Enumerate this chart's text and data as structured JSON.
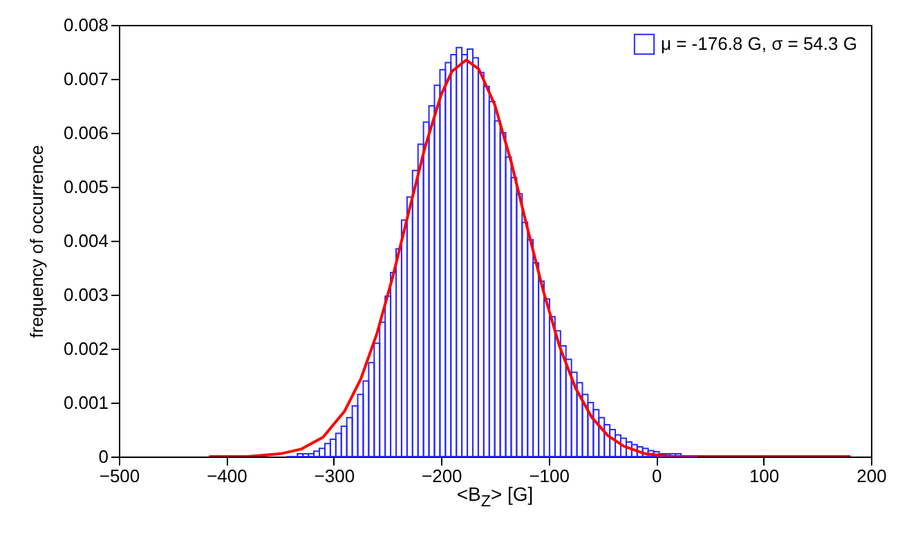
{
  "chart_data": {
    "type": "histogram",
    "xlabel": "<B$_{Z}$> [G]",
    "ylabel": "frequency of occurrence",
    "xlim": [
      -500,
      200
    ],
    "xticks": [
      -500,
      -400,
      -300,
      -200,
      -100,
      0,
      100,
      200
    ],
    "ylim": [
      0,
      0.008
    ],
    "yticks": [
      0,
      0.001,
      0.002,
      0.003,
      0.004,
      0.005,
      0.006,
      0.007,
      0.008
    ],
    "grid": false,
    "legend": "top right",
    "bins": [
      -344.0,
      -338.9,
      -333.8,
      -328.7,
      -323.6,
      -318.5,
      -313.4,
      -308.3,
      -303.2,
      -298.1,
      -293.0,
      -287.9,
      -282.8,
      -277.7,
      -272.6,
      -267.5,
      -262.4,
      -257.3,
      -252.2,
      -247.1,
      -242.0,
      -236.9,
      -231.8,
      -226.7,
      -221.6,
      -216.5,
      -211.4,
      -206.3,
      -201.2,
      -196.1,
      -191.0,
      -185.9,
      -180.8,
      -175.7,
      -170.6,
      -165.5,
      -160.4,
      -155.3,
      -150.2,
      -145.1,
      -140.0,
      -134.9,
      -129.8,
      -124.7,
      -119.6,
      -114.5,
      -109.4,
      -104.3,
      -99.2,
      -94.1,
      -89.0,
      -83.9,
      -78.8,
      -73.7,
      -68.6,
      -63.5,
      -58.4,
      -53.3,
      -48.2,
      -43.1,
      -38.0,
      -32.9,
      -27.8,
      -22.7,
      -17.6,
      -12.5,
      -7.4,
      -2.3,
      2.8,
      7.9,
      13.0,
      18.1,
      23.2,
      28.3,
      33.4,
      38.5
    ],
    "series": [
      {
        "name": "μ = -176.8 G, σ =  54.3 G",
        "type": "histogram",
        "color": "#2a2aff",
        "values": [
          0,
          0,
          5e-05,
          5e-05,
          5e-05,
          0.0001,
          0.00015,
          0.00024,
          0.00032,
          0.00043,
          0.00056,
          0.00072,
          0.00094,
          0.00115,
          0.0014,
          0.00174,
          0.0021,
          0.00249,
          0.00297,
          0.00341,
          0.00385,
          0.00438,
          0.00481,
          0.0053,
          0.00579,
          0.0062,
          0.0065,
          0.00688,
          0.00717,
          0.0073,
          0.00745,
          0.00758,
          0.00745,
          0.00755,
          0.00739,
          0.00712,
          0.00686,
          0.00658,
          0.00622,
          0.006,
          0.00555,
          0.00517,
          0.00487,
          0.00434,
          0.00402,
          0.00359,
          0.00325,
          0.00292,
          0.00259,
          0.00233,
          0.00205,
          0.0018,
          0.00156,
          0.00137,
          0.00115,
          0.001,
          0.00087,
          0.00072,
          0.00059,
          0.0005,
          0.0004,
          0.00034,
          0.00027,
          0.00022,
          0.00018,
          0.00015,
          0.00011,
          9e-05,
          5e-05,
          5e-05,
          5e-05,
          5e-05,
          0,
          0,
          0
        ]
      },
      {
        "type": "line",
        "color": "#ff0000",
        "x": [
          -415,
          -380,
          -350,
          -330,
          -310,
          -290,
          -275,
          -260,
          -245,
          -230,
          -215,
          -200,
          -190,
          -176.8,
          -165,
          -150,
          -135,
          -120,
          -105,
          -90,
          -75,
          -60,
          -45,
          -30,
          -10,
          15,
          50,
          180
        ],
        "values": [
          0,
          0,
          5e-05,
          0.00014,
          0.00036,
          0.00084,
          0.00143,
          0.00227,
          0.00334,
          0.00455,
          0.00574,
          0.00671,
          0.00714,
          0.00735,
          0.00718,
          0.00651,
          0.00547,
          0.00425,
          0.00307,
          0.00205,
          0.00127,
          0.00073,
          0.00039,
          0.00019,
          5e-05,
          0,
          0,
          0
        ]
      }
    ]
  }
}
